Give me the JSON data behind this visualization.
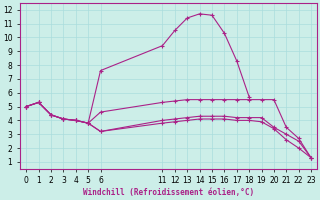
{
  "background_color": "#cceee8",
  "line_color": "#aa2288",
  "grid_color": "#aadddd",
  "xlabel": "Windchill (Refroidissement éolien,°C)",
  "xlim": [
    -0.5,
    23.5
  ],
  "ylim": [
    0.5,
    12.5
  ],
  "xtick_values": [
    0,
    1,
    2,
    3,
    4,
    5,
    6,
    11,
    12,
    13,
    14,
    15,
    16,
    17,
    18,
    19,
    20,
    21,
    22,
    23
  ],
  "yticks": [
    1,
    2,
    3,
    4,
    5,
    6,
    7,
    8,
    9,
    10,
    11,
    12
  ],
  "lines": [
    {
      "x": [
        0,
        1,
        2,
        3,
        4,
        5,
        6,
        11,
        12,
        13,
        14,
        15,
        16,
        17,
        18,
        19,
        20,
        21,
        22,
        23
      ],
      "y": [
        5.0,
        5.3,
        4.4,
        4.1,
        4.0,
        3.8,
        7.6,
        9.4,
        10.5,
        11.4,
        11.7,
        11.6,
        10.3,
        8.3,
        5.7,
        null,
        null,
        null,
        null,
        null
      ]
    },
    {
      "x": [
        0,
        1,
        2,
        3,
        4,
        5,
        6,
        11,
        12,
        13,
        14,
        15,
        16,
        17,
        18,
        19,
        20,
        21,
        22,
        23
      ],
      "y": [
        5.0,
        5.3,
        4.4,
        4.1,
        4.0,
        3.8,
        4.6,
        5.3,
        5.4,
        5.5,
        5.5,
        5.5,
        5.5,
        5.5,
        5.5,
        5.5,
        5.5,
        3.5,
        2.7,
        1.3
      ]
    },
    {
      "x": [
        0,
        1,
        2,
        3,
        4,
        5,
        6,
        11,
        12,
        13,
        14,
        15,
        16,
        17,
        18,
        19,
        20,
        21,
        22,
        23
      ],
      "y": [
        5.0,
        5.3,
        4.4,
        4.1,
        4.0,
        3.8,
        3.2,
        4.0,
        4.1,
        4.2,
        4.3,
        4.3,
        4.3,
        4.2,
        4.2,
        4.2,
        3.5,
        3.0,
        2.5,
        1.3
      ]
    },
    {
      "x": [
        0,
        1,
        2,
        3,
        4,
        5,
        6,
        11,
        12,
        13,
        14,
        15,
        16,
        17,
        18,
        19,
        20,
        21,
        22,
        23
      ],
      "y": [
        5.0,
        5.3,
        4.4,
        4.1,
        4.0,
        3.8,
        3.2,
        3.8,
        3.9,
        4.0,
        4.1,
        4.1,
        4.1,
        4.0,
        4.0,
        3.9,
        3.4,
        2.6,
        2.0,
        1.3
      ]
    }
  ]
}
